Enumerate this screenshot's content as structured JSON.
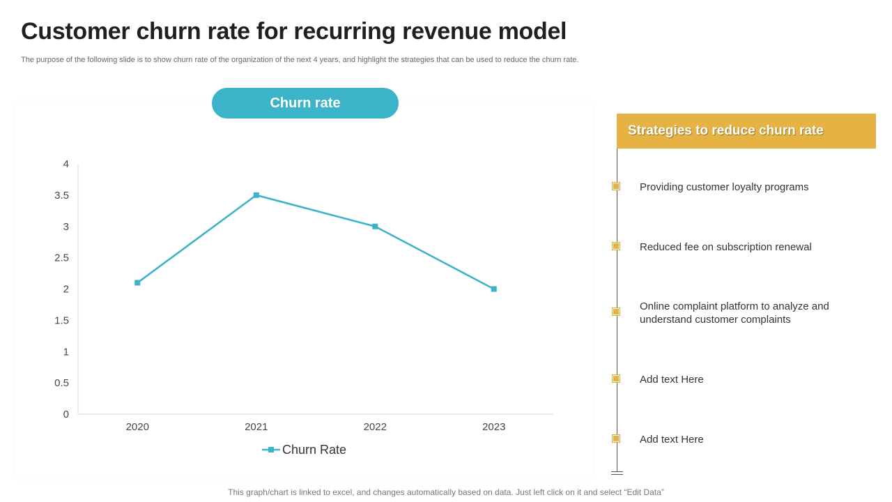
{
  "page": {
    "title": "Customer churn rate for recurring revenue model",
    "subtitle": "The purpose of the following slide is to show churn rate of the organization of the next 4 years, and highlight the strategies that can be used to reduce the churn rate.",
    "footer": "This graph/chart is linked to excel, and changes automatically based on data. Just left click on it and select “Edit Data”"
  },
  "chart_panel": {
    "label": "Churn rate"
  },
  "chart_data": {
    "type": "line",
    "title": "Churn rate",
    "categories": [
      "2020",
      "2021",
      "2022",
      "2023"
    ],
    "series": [
      {
        "name": "Churn Rate",
        "values": [
          2.1,
          3.5,
          3.0,
          2.0
        ]
      }
    ],
    "xlabel": "",
    "ylabel": "",
    "ylim": [
      0,
      4
    ],
    "yticks": [
      "0",
      "0.5",
      "1",
      "1.5",
      "2",
      "2.5",
      "3",
      "3.5",
      "4"
    ],
    "grid": false,
    "legend": "bottom"
  },
  "colors": {
    "series": "#3bb3c8",
    "accent": "#e5b243",
    "axis": "#d9d9d9"
  },
  "strategies": {
    "header": "Strategies to reduce churn rate",
    "items": [
      {
        "text": "Providing customer loyalty programs"
      },
      {
        "text": "Reduced fee on subscription renewal"
      },
      {
        "text": "Online complaint platform to analyze and understand customer complaints"
      },
      {
        "text": "Add text Here"
      },
      {
        "text": "Add text Here"
      }
    ]
  }
}
